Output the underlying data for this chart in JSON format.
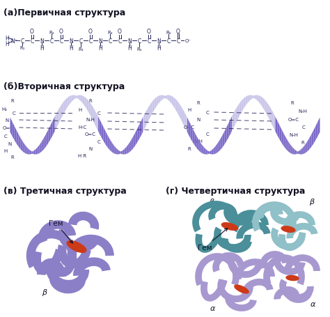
{
  "background_color": "#ffffff",
  "label_a": "(а)Первичная структура",
  "label_b": "(б)Вторичная структура",
  "label_v": "(в) Третичная структура",
  "label_g": "(г) Четвертичная структура",
  "label_gem1": "Гем",
  "label_gem2": "Гем",
  "label_beta1": "β",
  "label_beta2": "β",
  "label_alpha1": "α",
  "label_alpha2": "α",
  "helix_color": "#7b68c8",
  "helix_shadow_color": "#c8c4e8",
  "protein3_color": "#8b7fc8",
  "protein4_teal": "#4a8f9a",
  "protein4_light_teal": "#90c0c8",
  "protein4_lavender": "#a898d0",
  "heme_color": "#cc3a18",
  "text_color": "#111122",
  "chain_color": "#222255"
}
